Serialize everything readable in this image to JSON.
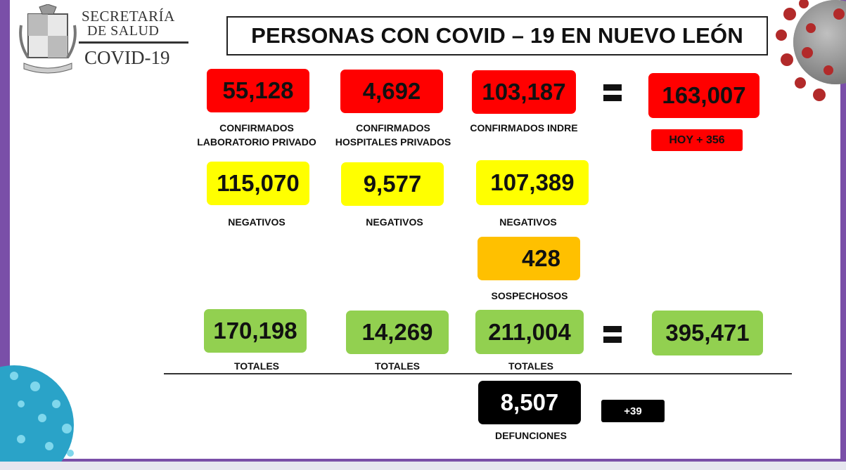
{
  "header": {
    "org_line1": "SECRETARÍA",
    "org_line2": "DE SALUD",
    "org_line3": "COVID-19",
    "title": "PERSONAS CON COVID – 19 EN NUEVO LEÓN"
  },
  "confirmed": {
    "lab_privado": {
      "value": "55,128",
      "label1": "CONFIRMADOS",
      "label2": "LABORATORIO PRIVADO"
    },
    "hosp_privados": {
      "value": "4,692",
      "label1": "CONFIRMADOS",
      "label2": "HOSPITALES PRIVADOS"
    },
    "indre": {
      "value": "103,187",
      "label": "CONFIRMADOS INDRE"
    },
    "total": {
      "value": "163,007",
      "today": "HOY + 356"
    }
  },
  "negatives": {
    "lab_privado": {
      "value": "115,070",
      "label": "NEGATIVOS"
    },
    "hosp_privados": {
      "value": "9,577",
      "label": "NEGATIVOS"
    },
    "indre": {
      "value": "107,389",
      "label": "NEGATIVOS"
    }
  },
  "suspects": {
    "value": "428",
    "label": "SOSPECHOSOS"
  },
  "totals": {
    "lab_privado": {
      "value": "170,198",
      "label": "TOTALES"
    },
    "hosp_privados": {
      "value": "14,269",
      "label": "TOTALES"
    },
    "indre": {
      "value": "211,004",
      "label": "TOTALES"
    },
    "grand": {
      "value": "395,471"
    }
  },
  "deaths": {
    "value": "8,507",
    "label": "DEFUNCIONES",
    "delta": "+39"
  },
  "colors": {
    "red": "#ff0000",
    "yellow": "#ffff00",
    "orange": "#ffc000",
    "green": "#92d050",
    "black": "#000000",
    "frame": "#7a4fa8"
  },
  "icons": [
    "state-seal-icon",
    "virus-illustration-icon",
    "equals-icon"
  ]
}
